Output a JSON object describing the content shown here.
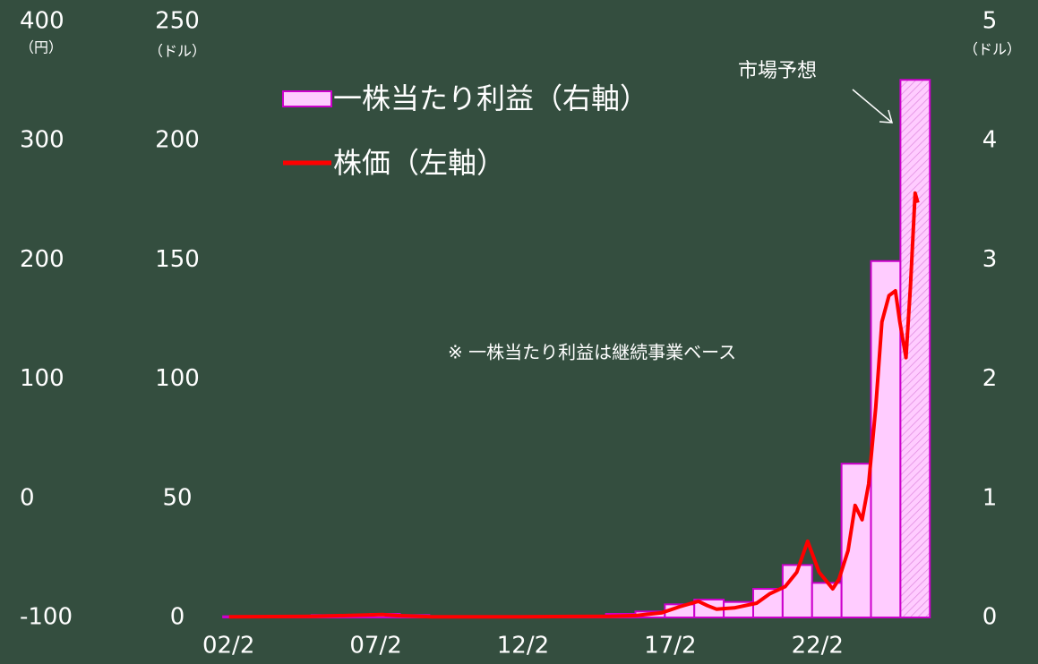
{
  "chart_data": {
    "type": "combo",
    "xlim": [
      2001.5,
      2026.5
    ],
    "xticks": [
      {
        "value": 2002.083,
        "label": "02/2"
      },
      {
        "value": 2007.083,
        "label": "07/2"
      },
      {
        "value": 2012.083,
        "label": "12/2"
      },
      {
        "value": 2017.083,
        "label": "17/2"
      },
      {
        "value": 2022.083,
        "label": "22/2"
      }
    ],
    "ylabel": "（ドル）",
    "ylim": [
      0,
      250
    ],
    "yticks": [
      0,
      50,
      100,
      150,
      200,
      250
    ],
    "y2label": "（ドル）",
    "y2lim": [
      0,
      5
    ],
    "y2ticks": [
      0,
      1,
      2,
      3,
      4,
      5
    ],
    "y3label": "（円）",
    "y3lim": [
      -100,
      400
    ],
    "y3ticks": [
      -100,
      0,
      100,
      200,
      300,
      400
    ],
    "series": [
      {
        "name": "一株当たり利益（右軸）",
        "type": "bar",
        "axis": "y2",
        "color": "#ffccff",
        "stroke": "#cc00cc",
        "x": [
          2002.4,
          2003.4,
          2004.4,
          2005.4,
          2006.4,
          2007.4,
          2008.4,
          2009.4,
          2010.4,
          2011.4,
          2012.4,
          2013.4,
          2014.4,
          2015.4,
          2016.4,
          2017.4,
          2018.4,
          2019.4,
          2020.4,
          2021.4,
          2022.4,
          2023.4,
          2024.4,
          2025.4
        ],
        "values": [
          0.01,
          0.01,
          0.01,
          0.02,
          0.02,
          0.03,
          0.02,
          0.0,
          0.01,
          0.01,
          0.01,
          0.01,
          0.01,
          0.03,
          0.05,
          0.11,
          0.15,
          0.13,
          0.24,
          0.44,
          0.29,
          1.29,
          2.99,
          4.51
        ],
        "hatched": [
          false,
          false,
          false,
          false,
          false,
          false,
          false,
          false,
          false,
          false,
          false,
          false,
          false,
          false,
          false,
          false,
          false,
          false,
          false,
          false,
          false,
          false,
          false,
          true
        ]
      },
      {
        "name": "株価（左軸）",
        "type": "line",
        "axis": "y",
        "color": "#ff0000",
        "x": [
          2002.1,
          2005.0,
          2007.3,
          2007.8,
          2009.0,
          2012.0,
          2015.0,
          2015.9,
          2016.8,
          2017.4,
          2018.04,
          2018.34,
          2018.65,
          2019.26,
          2020.02,
          2020.47,
          2020.99,
          2021.38,
          2021.75,
          2022.14,
          2022.6,
          2022.81,
          2023.12,
          2023.36,
          2023.6,
          2023.82,
          2024.06,
          2024.27,
          2024.51,
          2024.73,
          2024.88,
          2025.09,
          2025.24,
          2025.4,
          2025.49
        ],
        "values": [
          0.3,
          0.5,
          1.2,
          0.8,
          0.3,
          0.3,
          0.5,
          0.8,
          2,
          4.5,
          6.8,
          5,
          3.5,
          4,
          6,
          10,
          13,
          19,
          32,
          19,
          12,
          16,
          28,
          47,
          41,
          56,
          88,
          124,
          135,
          137,
          124,
          109,
          139,
          178,
          174
        ]
      }
    ],
    "annotation": "市場予想",
    "note": "※ 一株当たり利益は継続事業ベース"
  }
}
